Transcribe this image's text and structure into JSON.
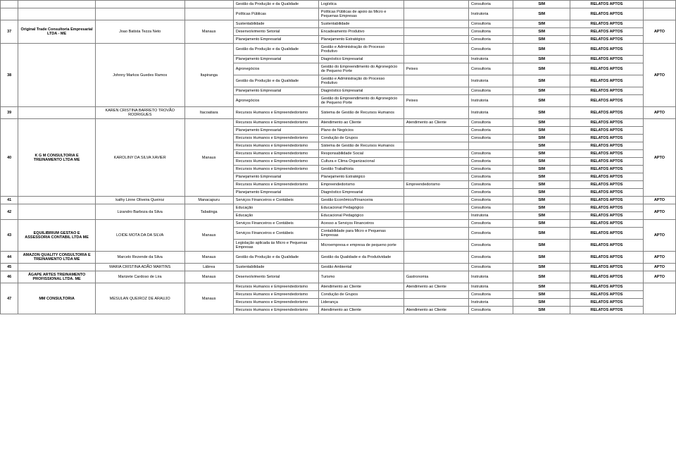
{
  "columns": {
    "widths": [
      "22",
      "95",
      "110",
      "60",
      "105",
      "105",
      "80",
      "55",
      "70",
      "90",
      "40"
    ]
  },
  "labels": {
    "sim": "SIM",
    "relatos": "RELATOS APTOS",
    "apto": "APTO",
    "consultoria": "Consultoria",
    "instrutoria": "Instrutoria"
  },
  "rows": [
    {
      "n": "",
      "company": "",
      "person": "",
      "city": "",
      "area": "Gestão da Produção e da Qualidade",
      "sub": "Logística",
      "ext": "",
      "tipo": "Consultoria",
      "sim": "SIM",
      "rel": "RELATOS APTOS",
      "apto": ""
    },
    {
      "n": "",
      "company": "",
      "person": "",
      "city": "",
      "area": "Políticas Públicas",
      "sub": "Políticas Públicas de apoio às Micro e Pequenas Empresas",
      "ext": "",
      "tipo": "Instrutoria",
      "sim": "SIM",
      "rel": "RELATOS APTOS",
      "apto": ""
    },
    {
      "n": "37",
      "n_rowspan": 3,
      "company": "Original Trade Consultoria Empresarial LTDA - ME",
      "company_rowspan": 3,
      "person": "Joao Batista Tezza Neto",
      "person_rowspan": 3,
      "city": "Manaus",
      "city_rowspan": 3,
      "area": "Sustentabilidade",
      "sub": "Sustentabilidade",
      "ext": "",
      "tipo": "Consultoria",
      "sim": "SIM",
      "rel": "RELATOS APTOS",
      "apto": "APTO",
      "apto_rowspan": 3
    },
    {
      "area": "Desenvolvimento Setorial",
      "sub": "Encadeamento Produtivo",
      "ext": "",
      "tipo": "Consultoria",
      "sim": "SIM",
      "rel": "RELATOS APTOS"
    },
    {
      "area": "Planejamento Empresarial",
      "sub": "Planejamento Estratégico",
      "ext": "",
      "tipo": "Consultoria",
      "sim": "SIM",
      "rel": "RELATOS APTOS"
    },
    {
      "n": "38",
      "n_rowspan": 6,
      "company": "",
      "company_rowspan": 6,
      "person": "Johnny Markos Guedes Ramos",
      "person_rowspan": 6,
      "city": "Itapiranga",
      "city_rowspan": 6,
      "area": "Gestão da Produção e da Qualidade",
      "sub": "Gestão e Administração do Processo Produtivo",
      "ext": "",
      "tipo": "Consultoria",
      "sim": "SIM",
      "rel": "RELATOS APTOS",
      "apto": "APTO",
      "apto_rowspan": 6
    },
    {
      "area": "Planejamento Empresarial",
      "sub": "Diagnóstico Empresarial",
      "ext": "",
      "tipo": "Instrutoria",
      "sim": "SIM",
      "rel": "RELATOS APTOS"
    },
    {
      "area": "Agronegócios",
      "sub": "Gestão do Empreendimento do Agronegócio de Pequeno Porte",
      "ext": "Peixes",
      "tipo": "Consultoria",
      "sim": "SIM",
      "rel": "RELATOS APTOS"
    },
    {
      "area": "Gestão da Produção e da Qualidade",
      "sub": "Gestão e Administração do Processo Produtivo",
      "ext": "",
      "tipo": "Instrutoria",
      "sim": "SIM",
      "rel": "RELATOS APTOS"
    },
    {
      "area": "Planejamento Empresarial",
      "sub": "Diagnóstico Empresarial",
      "ext": "",
      "tipo": "Consultoria",
      "sim": "SIM",
      "rel": "RELATOS APTOS"
    },
    {
      "area": "Agronegócios",
      "sub": "Gestão do Empreendimento do Agronegócio de Pequeno Porte",
      "ext": "Peixes",
      "tipo": "Instrutoria",
      "sim": "SIM",
      "rel": "RELATOS APTOS"
    },
    {
      "n": "39",
      "company": "",
      "person": "KAREN CRISTINA BARRETO TROVÃO RODRIGUES",
      "city": "Itacoatiara",
      "area": "Recursos Humanos e Empreendedorismo",
      "sub": "Sistema de Gestão de Recursos Humanos",
      "ext": "",
      "tipo": "Instrutoria",
      "sim": "SIM",
      "rel": "RELATOS APTOS",
      "apto": "APTO"
    },
    {
      "n": "40",
      "n_rowspan": 10,
      "company": "K G M CONSULTORIA E TREINAMENTO LTDA ME",
      "company_rowspan": 10,
      "person": "KAROLINY DA SILVA XAVIER",
      "person_rowspan": 10,
      "city": "Manaus",
      "city_rowspan": 10,
      "area": "Recursos Humanos e Empreendedorismo",
      "sub": "Atendimento ao Cliente",
      "ext": "Atendimento ao Cliente",
      "tipo": "Consultoria",
      "sim": "SIM",
      "rel": "RELATOS APTOS",
      "apto": "APTO",
      "apto_rowspan": 10
    },
    {
      "area": "Planejamento Empresarial",
      "sub": "Plano de Negócios",
      "ext": "",
      "tipo": "Consultoria",
      "sim": "SIM",
      "rel": "RELATOS APTOS"
    },
    {
      "area": "Recursos Humanos e Empreendedorismo",
      "sub": "Condução de Grupos",
      "ext": "",
      "tipo": "Consultoria",
      "sim": "SIM",
      "rel": "RELATOS APTOS"
    },
    {
      "area": "Recursos Humanos e Empreendedorismo",
      "sub": "Sistema de Gestão de Recursos Humanos",
      "ext": "",
      "tipo": "",
      "sim": "SIM",
      "rel": "RELATOS APTOS"
    },
    {
      "area": "Recursos Humanos e Empreendedorismo",
      "sub": "Responsabilidade Social",
      "ext": "",
      "tipo": "Consultoria",
      "sim": "SIM",
      "rel": "RELATOS APTOS"
    },
    {
      "area": "Recursos Humanos e Empreendedorismo",
      "sub": "Cultura e Clima Organizacional",
      "ext": "",
      "tipo": "Consultoria",
      "sim": "SIM",
      "rel": "RELATOS APTOS"
    },
    {
      "area": "Recursos Humanos e Empreendedorismo",
      "sub": "Gestão Trabalhista",
      "ext": "",
      "tipo": "Consultoria",
      "sim": "SIM",
      "rel": "RELATOS APTOS"
    },
    {
      "area": "Planejamento Empresarial",
      "sub": "Planejamento Estratégico",
      "ext": "",
      "tipo": "Consultoria",
      "sim": "SIM",
      "rel": "RELATOS APTOS"
    },
    {
      "area": "Recursos Humanos e Empreendedorismo",
      "sub": "Empreendedorismo",
      "ext": "Empreendedorismo",
      "tipo": "Consultoria",
      "sim": "SIM",
      "rel": "RELATOS APTOS"
    },
    {
      "area": "Planejamento Empresarial",
      "sub": "Diagnóstico Empresarial",
      "ext": "",
      "tipo": "Consultoria",
      "sim": "SIM",
      "rel": "RELATOS APTOS"
    },
    {
      "n": "41",
      "company": "",
      "person": "kathy Linne Oliveira Queiroz",
      "city": "Manacapuru",
      "area": "Serviços Financeiros e Contábeis",
      "sub": "Gestão Econômico/Financeira",
      "ext": "",
      "tipo": "Consultoria",
      "sim": "SIM",
      "rel": "RELATOS APTOS",
      "apto": "APTO"
    },
    {
      "n": "42",
      "n_rowspan": 2,
      "company": "",
      "company_rowspan": 2,
      "person": "Lizandro Barboza da Silva",
      "person_rowspan": 2,
      "city": "Tabatinga",
      "city_rowspan": 2,
      "area": "Educação",
      "sub": "Educacional Pedagógico",
      "ext": "",
      "tipo": "Consultoria",
      "sim": "SIM",
      "rel": "RELATOS APTOS",
      "apto": "APTO",
      "apto_rowspan": 2
    },
    {
      "area": "Educação",
      "sub": "Educacional Pedagógico",
      "ext": "",
      "tipo": "Instrutoria",
      "sim": "SIM",
      "rel": "RELATOS APTOS"
    },
    {
      "n": "43",
      "n_rowspan": 3,
      "company": "EQUILIBRIUM GESTAO E ASSESSORIA CONTABIL LTDA ME",
      "company_rowspan": 3,
      "person": "LOIDE MOTA DA DA SILVA",
      "person_rowspan": 3,
      "city": "Manaus",
      "city_rowspan": 3,
      "area": "Serviços Financeiros e Contábeis",
      "sub": "Acesso a Serviços Financeiros",
      "ext": "",
      "tipo": "Consultoria",
      "sim": "SIM",
      "rel": "RELATOS APTOS",
      "apto": "APTO",
      "apto_rowspan": 3
    },
    {
      "area": "Serviços Financeiros e Contábeis",
      "sub": "Contabilidade para Micro e Pequenas Empresas",
      "ext": "",
      "tipo": "Consultoria",
      "sim": "SIM",
      "rel": "RELATOS APTOS"
    },
    {
      "area": "Legislação aplicada às Micro e Pequenas Empresas",
      "sub": "Microempresa e empresa de pequeno porte",
      "ext": "",
      "tipo": "Consultoria",
      "sim": "SIM",
      "rel": "RELATOS APTOS"
    },
    {
      "n": "44",
      "company": "AMAZON QUALITY CONSULTORIA E TREINAMENTO LTDA ME",
      "person": "Marcelo Rezende da Silva",
      "city": "Manaus",
      "area": "Gestão da Produção e da Qualidade",
      "sub": "Gestão da Qualidade e da Produtividade",
      "ext": "",
      "tipo": "Consultoria",
      "sim": "SIM",
      "rel": "RELATOS APTOS",
      "apto": "APTO"
    },
    {
      "n": "45",
      "company": "",
      "person": "MARIA CRISTINA ADÃO MARTINS",
      "city": "Lábrea",
      "area": "Sustentabilidade",
      "sub": "Gestão Ambiental",
      "ext": "",
      "tipo": "Consultoria",
      "sim": "SIM",
      "rel": "RELATOS APTOS",
      "apto": "APTO"
    },
    {
      "n": "46",
      "company": "ÁGAPE ARTES TREINAMENTO PROFISSIONAL LTDA. ME",
      "person": "Marizete Cardoso de Lira",
      "city": "Manaus",
      "area": "Desenvolvimento Setorial",
      "sub": "Turismo",
      "ext": "Gastronomia",
      "tipo": "Instrutoria",
      "sim": "SIM",
      "rel": "RELATOS APTOS",
      "apto": "APTO"
    },
    {
      "n": "47",
      "n_rowspan": 4,
      "company": "MM CONSULTORIA",
      "company_rowspan": 4,
      "person": "MESULAN QUEIROZ DE ARAUJO",
      "person_rowspan": 4,
      "city": "Manaus",
      "city_rowspan": 4,
      "area": "Recursos Humanos e Empreendedorismo",
      "sub": "Atendimento ao Cliente",
      "ext": "Atendimento ao Cliente",
      "tipo": "Instrutoria",
      "sim": "SIM",
      "rel": "RELATOS APTOS",
      "apto": "",
      "apto_rowspan": 4
    },
    {
      "area": "Recursos Humanos e Empreendedorismo",
      "sub": "Condução de Grupos",
      "ext": "",
      "tipo": "Consultoria",
      "sim": "SIM",
      "rel": "RELATOS APTOS"
    },
    {
      "area": "Recursos Humanos e Empreendedorismo",
      "sub": "Liderança",
      "ext": "",
      "tipo": "Instrutoria",
      "sim": "SIM",
      "rel": "RELATOS APTOS"
    },
    {
      "area": "Recursos Humanos e Empreendedorismo",
      "sub": "Atendimento ao Cliente",
      "ext": "Atendimento ao Cliente",
      "tipo": "Consultoria",
      "sim": "SIM",
      "rel": "RELATOS APTOS"
    }
  ]
}
